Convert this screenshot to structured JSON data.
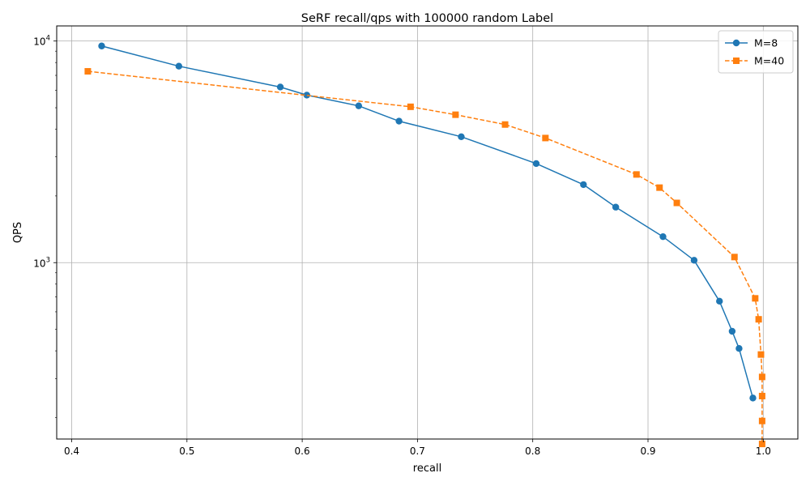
{
  "chart_data": {
    "type": "line",
    "title": "SeRF recall/qps with 100000 random Label",
    "xlabel": "recall",
    "ylabel": "QPS",
    "xlim": [
      0.387,
      1.03
    ],
    "ylim": [
      160,
      11700
    ],
    "y_scale": "log",
    "grid": true,
    "legend_position": "top-right",
    "x_ticks": [
      0.4,
      0.5,
      0.6,
      0.7,
      0.8,
      0.9,
      1.0
    ],
    "x_tick_labels": [
      "0.4",
      "0.5",
      "0.6",
      "0.7",
      "0.8",
      "0.9",
      "1.0"
    ],
    "y_ticks": [
      1000,
      10000
    ],
    "y_tick_labels": [
      {
        "base": "10",
        "exp": "3"
      },
      {
        "base": "10",
        "exp": "4"
      }
    ],
    "series": [
      {
        "name": "M=8",
        "color": "#1f77b4",
        "line_style": "solid",
        "marker": "circle",
        "x": [
          0.426,
          0.493,
          0.581,
          0.604,
          0.649,
          0.684,
          0.738,
          0.803,
          0.844,
          0.872,
          0.913,
          0.94,
          0.962,
          0.973,
          0.979,
          0.991
        ],
        "y": [
          9500,
          7700,
          6200,
          5700,
          5100,
          4350,
          3700,
          2800,
          2250,
          1780,
          1310,
          1025,
          670,
          490,
          410,
          245
        ]
      },
      {
        "name": "M=40",
        "color": "#ff7f0e",
        "line_style": "dashed",
        "marker": "square",
        "x": [
          0.414,
          0.694,
          0.733,
          0.776,
          0.811,
          0.89,
          0.91,
          0.925,
          0.975,
          0.993,
          0.996,
          0.998,
          0.999,
          0.999,
          0.999,
          0.999
        ],
        "y": [
          7300,
          5050,
          4650,
          4200,
          3650,
          2500,
          2180,
          1860,
          1060,
          690,
          555,
          385,
          305,
          250,
          193,
          152
        ]
      }
    ]
  }
}
